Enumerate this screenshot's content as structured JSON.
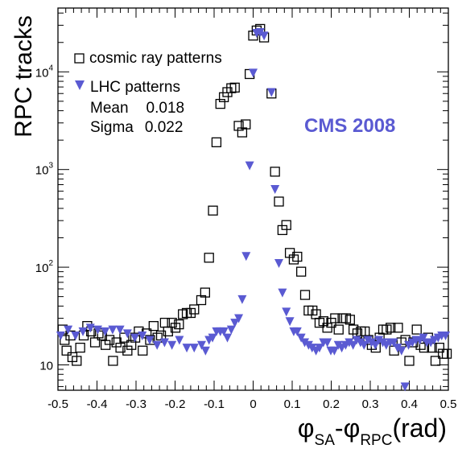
{
  "chart_data": {
    "type": "scatter",
    "ylabel": "RPC tracks",
    "xlabel_parts": {
      "phi1": "φ",
      "sub1": "SA",
      "dash": "-",
      "phi2": "φ",
      "sub2": "RPC",
      "unit": "(rad)"
    },
    "annotation": "CMS 2008",
    "stats": {
      "mean_label": "Mean",
      "mean_value": "0.018",
      "sigma_label": "Sigma",
      "sigma_value": "0.022"
    },
    "xlim": [
      -0.5,
      0.5
    ],
    "ylim": [
      5.5,
      45000
    ],
    "y_scale": "log",
    "x_ticks": [
      "-0.5",
      "-0.4",
      "-0.3",
      "-0.2",
      "-0.1",
      "0",
      "0.1",
      "0.2",
      "0.3",
      "0.4",
      "0.5"
    ],
    "y_ticks": [
      {
        "value": 10,
        "base": "10",
        "exp": ""
      },
      {
        "value": 100,
        "base": "10",
        "exp": "2"
      },
      {
        "value": 1000,
        "base": "10",
        "exp": "3"
      },
      {
        "value": 10000,
        "base": "10",
        "exp": "4"
      }
    ],
    "series": [
      {
        "name": "cosmic ray patterns",
        "marker": "open-square",
        "color": "#000000",
        "points": [
          [
            -0.488,
            23
          ],
          [
            -0.483,
            18
          ],
          [
            -0.478,
            14
          ],
          [
            -0.468,
            20
          ],
          [
            -0.463,
            12
          ],
          [
            -0.452,
            11
          ],
          [
            -0.443,
            15
          ],
          [
            -0.434,
            20
          ],
          [
            -0.425,
            25
          ],
          [
            -0.415,
            22
          ],
          [
            -0.405,
            17
          ],
          [
            -0.396,
            21
          ],
          [
            -0.387,
            20
          ],
          [
            -0.378,
            16
          ],
          [
            -0.368,
            18
          ],
          [
            -0.359,
            11
          ],
          [
            -0.35,
            17
          ],
          [
            -0.34,
            15
          ],
          [
            -0.33,
            19
          ],
          [
            -0.322,
            14
          ],
          [
            -0.312,
            16
          ],
          [
            -0.302,
            19
          ],
          [
            -0.293,
            22
          ],
          [
            -0.283,
            14
          ],
          [
            -0.273,
            21
          ],
          [
            -0.264,
            18
          ],
          [
            -0.255,
            25
          ],
          [
            -0.245,
            19
          ],
          [
            -0.236,
            20
          ],
          [
            -0.226,
            27
          ],
          [
            -0.218,
            22
          ],
          [
            -0.208,
            27
          ],
          [
            -0.199,
            24
          ],
          [
            -0.19,
            26
          ],
          [
            -0.18,
            33
          ],
          [
            -0.17,
            34
          ],
          [
            -0.16,
            34
          ],
          [
            -0.151,
            37
          ],
          [
            -0.133,
            46
          ],
          [
            -0.123,
            55
          ],
          [
            -0.113,
            125
          ],
          [
            -0.103,
            380
          ],
          [
            -0.094,
            1900
          ],
          [
            -0.084,
            4700
          ],
          [
            -0.075,
            5500
          ],
          [
            -0.066,
            6200
          ],
          [
            -0.056,
            6800
          ],
          [
            -0.047,
            6900
          ],
          [
            -0.037,
            2800
          ],
          [
            -0.028,
            2400
          ],
          [
            -0.019,
            2900
          ],
          [
            -0.009,
            9500
          ],
          [
            0.0,
            23500
          ],
          [
            0.009,
            26500
          ],
          [
            0.018,
            27500
          ],
          [
            0.028,
            22500
          ],
          [
            0.047,
            6000
          ],
          [
            0.056,
            950
          ],
          [
            0.066,
            470
          ],
          [
            0.075,
            240
          ],
          [
            0.085,
            270
          ],
          [
            0.094,
            140
          ],
          [
            0.104,
            120
          ],
          [
            0.113,
            128
          ],
          [
            0.123,
            90
          ],
          [
            0.133,
            52
          ],
          [
            0.142,
            36
          ],
          [
            0.152,
            36
          ],
          [
            0.161,
            33
          ],
          [
            0.17,
            27
          ],
          [
            0.18,
            28
          ],
          [
            0.19,
            24
          ],
          [
            0.2,
            27
          ],
          [
            0.21,
            30
          ],
          [
            0.219,
            23
          ],
          [
            0.229,
            30
          ],
          [
            0.238,
            30
          ],
          [
            0.248,
            29
          ],
          [
            0.257,
            23
          ],
          [
            0.267,
            21
          ],
          [
            0.276,
            22
          ],
          [
            0.286,
            22
          ],
          [
            0.295,
            18
          ],
          [
            0.304,
            16
          ],
          [
            0.314,
            15
          ],
          [
            0.324,
            19
          ],
          [
            0.333,
            23
          ],
          [
            0.342,
            23
          ],
          [
            0.352,
            24
          ],
          [
            0.361,
            14
          ],
          [
            0.371,
            24
          ],
          [
            0.38,
            17
          ],
          [
            0.39,
            18
          ],
          [
            0.4,
            11
          ],
          [
            0.41,
            17
          ],
          [
            0.419,
            23
          ],
          [
            0.429,
            16
          ],
          [
            0.438,
            15
          ],
          [
            0.448,
            19
          ],
          [
            0.458,
            15
          ],
          [
            0.467,
            11
          ],
          [
            0.477,
            15
          ],
          [
            0.486,
            13
          ],
          [
            0.496,
            13
          ]
        ]
      },
      {
        "name": "LHC patterns",
        "marker": "filled-triangle-down",
        "color": "#5a5ad2",
        "points": [
          [
            -0.493,
            20
          ],
          [
            -0.474,
            23
          ],
          [
            -0.455,
            20
          ],
          [
            -0.436,
            22
          ],
          [
            -0.417,
            24
          ],
          [
            -0.398,
            23
          ],
          [
            -0.379,
            22
          ],
          [
            -0.36,
            23
          ],
          [
            -0.341,
            23
          ],
          [
            -0.322,
            21
          ],
          [
            -0.303,
            19
          ],
          [
            -0.284,
            20
          ],
          [
            -0.265,
            18
          ],
          [
            -0.246,
            16
          ],
          [
            -0.227,
            17
          ],
          [
            -0.208,
            16
          ],
          [
            -0.189,
            18
          ],
          [
            -0.17,
            15
          ],
          [
            -0.151,
            15
          ],
          [
            -0.132,
            16
          ],
          [
            -0.122,
            14
          ],
          [
            -0.113,
            18
          ],
          [
            -0.104,
            19
          ],
          [
            -0.094,
            22
          ],
          [
            -0.084,
            22
          ],
          [
            -0.075,
            22
          ],
          [
            -0.066,
            19
          ],
          [
            -0.056,
            23
          ],
          [
            -0.047,
            27
          ],
          [
            -0.037,
            30
          ],
          [
            -0.028,
            47
          ],
          [
            -0.018,
            130
          ],
          [
            -0.009,
            1100
          ],
          [
            0.0,
            9800
          ],
          [
            0.009,
            25000
          ],
          [
            0.018,
            25500
          ],
          [
            0.028,
            23500
          ],
          [
            0.047,
            6200
          ],
          [
            0.056,
            630
          ],
          [
            0.066,
            110
          ],
          [
            0.075,
            55
          ],
          [
            0.085,
            35
          ],
          [
            0.094,
            28
          ],
          [
            0.104,
            22
          ],
          [
            0.113,
            22
          ],
          [
            0.123,
            19
          ],
          [
            0.132,
            17
          ],
          [
            0.142,
            16
          ],
          [
            0.151,
            15
          ],
          [
            0.161,
            14
          ],
          [
            0.17,
            15
          ],
          [
            0.18,
            17
          ],
          [
            0.19,
            17
          ],
          [
            0.199,
            14
          ],
          [
            0.208,
            14
          ],
          [
            0.218,
            16
          ],
          [
            0.227,
            15
          ],
          [
            0.237,
            16
          ],
          [
            0.246,
            17
          ],
          [
            0.256,
            16
          ],
          [
            0.265,
            18
          ],
          [
            0.275,
            17
          ],
          [
            0.284,
            16
          ],
          [
            0.294,
            18
          ],
          [
            0.303,
            17
          ],
          [
            0.313,
            16
          ],
          [
            0.322,
            18
          ],
          [
            0.332,
            17
          ],
          [
            0.341,
            16
          ],
          [
            0.351,
            17
          ],
          [
            0.36,
            17
          ],
          [
            0.37,
            15
          ],
          [
            0.38,
            14
          ],
          [
            0.389,
            6
          ],
          [
            0.398,
            16
          ],
          [
            0.408,
            17
          ],
          [
            0.417,
            18
          ],
          [
            0.427,
            18
          ],
          [
            0.436,
            19
          ],
          [
            0.445,
            17
          ],
          [
            0.455,
            17
          ],
          [
            0.464,
            18
          ],
          [
            0.474,
            19
          ],
          [
            0.483,
            20
          ],
          [
            0.493,
            20
          ]
        ]
      }
    ]
  }
}
